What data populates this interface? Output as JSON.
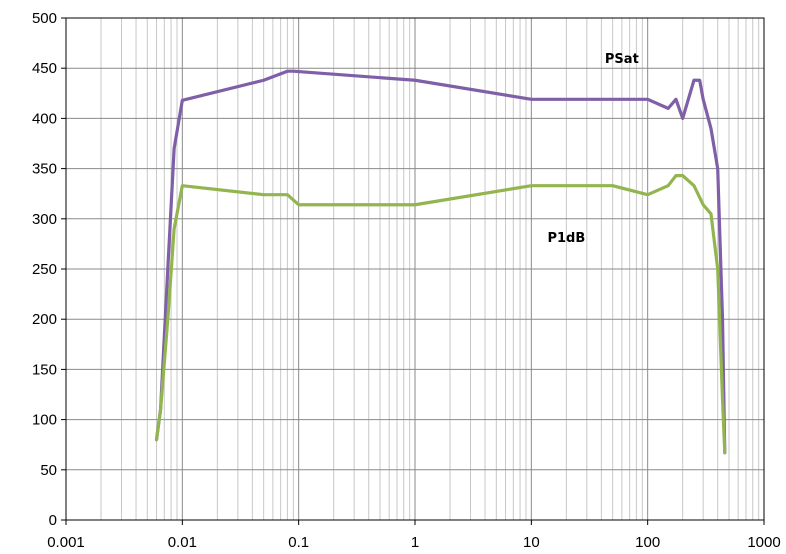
{
  "chart_data": {
    "type": "line",
    "title": "",
    "xlabel": "",
    "ylabel": "",
    "x_scale": "log",
    "xlim": [
      0.001,
      1000
    ],
    "ylim": [
      0,
      500
    ],
    "grid": true,
    "x_tick_labels": [
      "0.001",
      "0.01",
      "0.1",
      "1",
      "10",
      "100",
      "1000"
    ],
    "y_tick_labels": [
      "0",
      "50",
      "100",
      "150",
      "200",
      "250",
      "300",
      "350",
      "400",
      "450",
      "500"
    ],
    "series": [
      {
        "name": "PSat",
        "color": "#7f5fa8",
        "x": [
          0.006,
          0.0065,
          0.0075,
          0.0085,
          0.01,
          0.05,
          0.08,
          0.09,
          1,
          10,
          100,
          150,
          175,
          200,
          250,
          280,
          300,
          350,
          400,
          440,
          460
        ],
        "y": [
          80,
          110,
          250,
          370,
          418,
          438,
          447,
          447,
          438,
          419,
          419,
          410,
          419,
          400,
          438,
          438,
          419,
          390,
          350,
          200,
          67
        ]
      },
      {
        "name": "P1dB",
        "color": "#92b54f",
        "x": [
          0.006,
          0.0065,
          0.0075,
          0.0085,
          0.01,
          0.05,
          0.08,
          0.1,
          1,
          10,
          50,
          100,
          150,
          175,
          200,
          250,
          300,
          350,
          400,
          440,
          460
        ],
        "y": [
          80,
          110,
          200,
          290,
          333,
          324,
          324,
          314,
          314,
          333,
          333,
          324,
          333,
          343,
          343,
          333,
          314,
          305,
          250,
          120,
          67
        ]
      }
    ],
    "annotations": [
      {
        "text": "PSat",
        "x": 60,
        "y": 455
      },
      {
        "text": "P1dB",
        "x": 20,
        "y": 277
      }
    ]
  }
}
